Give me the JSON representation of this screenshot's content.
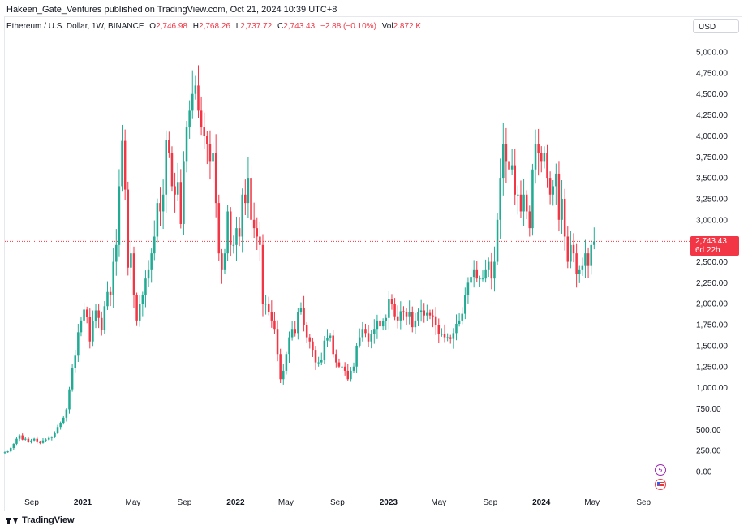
{
  "header": {
    "publisher_line": "Hakeen_Gate_Ventures published on TradingView.com, Oct 21, 2024 10:39 UTC+8"
  },
  "legend": {
    "symbol": "Ethereum / U.S. Dollar, 1W, BINANCE",
    "o_label": "O",
    "o_value": "2,746.98",
    "h_label": "H",
    "h_value": "2,768.26",
    "l_label": "L",
    "l_value": "2,737.72",
    "c_label": "C",
    "c_value": "2,743.43",
    "change": "−2.88 (−0.10%)",
    "vol_label": "Vol",
    "vol_value": "2.872 K"
  },
  "currency_button": "USD",
  "price_tag": {
    "price": "2,743.43",
    "countdown": "6d 22h"
  },
  "footer": {
    "brand": "TradingView"
  },
  "colors": {
    "up": "#22ab94",
    "down": "#f23645",
    "tag": "#f23645",
    "text": "#131722"
  },
  "icons": {
    "event1": "lightning-icon",
    "event2": "us-flag-icon"
  },
  "chart_data": {
    "type": "candlestick",
    "current_price": 2743.43,
    "ylim": [
      0,
      5000
    ],
    "y_ticks": [
      "5,000.00",
      "4,750.00",
      "4,500.00",
      "4,250.00",
      "4,000.00",
      "3,750.00",
      "3,500.00",
      "3,250.00",
      "3,000.00",
      "2,750.00",
      "2,500.00",
      "2,250.00",
      "2,000.00",
      "1,750.00",
      "1,500.00",
      "1,250.00",
      "1,000.00",
      "750.00",
      "500.00",
      "250.00",
      "0.00"
    ],
    "y_tick_values": [
      5000,
      4750,
      4500,
      4250,
      4000,
      3750,
      3500,
      3250,
      3000,
      2750,
      2500,
      2250,
      2000,
      1750,
      1500,
      1250,
      1000,
      750,
      500,
      250,
      0
    ],
    "x_ticks": [
      {
        "label": "Sep",
        "date": "2020-09-01"
      },
      {
        "label": "2021",
        "date": "2021-01-01"
      },
      {
        "label": "May",
        "date": "2021-05-01"
      },
      {
        "label": "Sep",
        "date": "2021-09-01"
      },
      {
        "label": "2022",
        "date": "2022-01-01"
      },
      {
        "label": "May",
        "date": "2022-05-01"
      },
      {
        "label": "Sep",
        "date": "2022-09-01"
      },
      {
        "label": "2023",
        "date": "2023-01-01"
      },
      {
        "label": "May",
        "date": "2023-05-01"
      },
      {
        "label": "Sep",
        "date": "2023-09-01"
      },
      {
        "label": "2024",
        "date": "2024-01-01"
      },
      {
        "label": "May",
        "date": "2024-05-01"
      },
      {
        "label": "Sep",
        "date": "2024-09-01"
      }
    ],
    "x_range": [
      "2020-06-29",
      "2024-12-20"
    ],
    "first_candle": "2020-06-29",
    "interval": "1W",
    "closes": [
      230,
      240,
      280,
      330,
      390,
      430,
      380,
      390,
      350,
      370,
      390,
      360,
      340,
      370,
      380,
      400,
      410,
      460,
      530,
      580,
      640,
      740,
      980,
      1230,
      1380,
      1660,
      1800,
      1930,
      1840,
      1550,
      1790,
      1920,
      1830,
      1690,
      1970,
      2140,
      2100,
      2500,
      2700,
      3400,
      3940,
      3360,
      2430,
      2600,
      2100,
      1800,
      2000,
      2100,
      2300,
      2400,
      2600,
      2800,
      3200,
      3100,
      3300,
      3950,
      3800,
      3400,
      3300,
      3450,
      2950,
      3700,
      4100,
      4300,
      4500,
      4600,
      4300,
      4100,
      4000,
      3900,
      3700,
      3800,
      3200,
      2600,
      2400,
      2600,
      3100,
      2700,
      2700,
      2900,
      2800,
      3300,
      3200,
      3500,
      3000,
      2900,
      2800,
      2700,
      2000,
      2000,
      1900,
      1800,
      1700,
      1400,
      1100,
      1200,
      1400,
      1600,
      1700,
      1650,
      1900,
      1950,
      1750,
      1600,
      1550,
      1450,
      1300,
      1300,
      1330,
      1560,
      1590,
      1620,
      1400,
      1300,
      1250,
      1250,
      1200,
      1100,
      1200,
      1250,
      1500,
      1600,
      1700,
      1650,
      1550,
      1640,
      1700,
      1800,
      1730,
      1790,
      1830,
      2050,
      2000,
      1850,
      1800,
      1910,
      1900,
      1850,
      1900,
      1720,
      1800,
      1900,
      1920,
      1860,
      1890,
      1860,
      1850,
      1750,
      1640,
      1640,
      1600,
      1600,
      1580,
      1650,
      1760,
      1800,
      1880,
      2100,
      2250,
      2320,
      2400,
      2300,
      2300,
      2300,
      2400,
      2500,
      2300,
      2500,
      3000,
      3500,
      3900,
      3700,
      3600,
      3650,
      3300,
      3300,
      3100,
      3300,
      3100,
      2900,
      3600,
      3900,
      3800,
      3700,
      3800,
      3500,
      3300,
      3400,
      3550,
      3000,
      3250,
      2800,
      2500,
      2700,
      2600,
      2350,
      2400,
      2450,
      2600,
      2450,
      2700,
      2743
    ]
  }
}
